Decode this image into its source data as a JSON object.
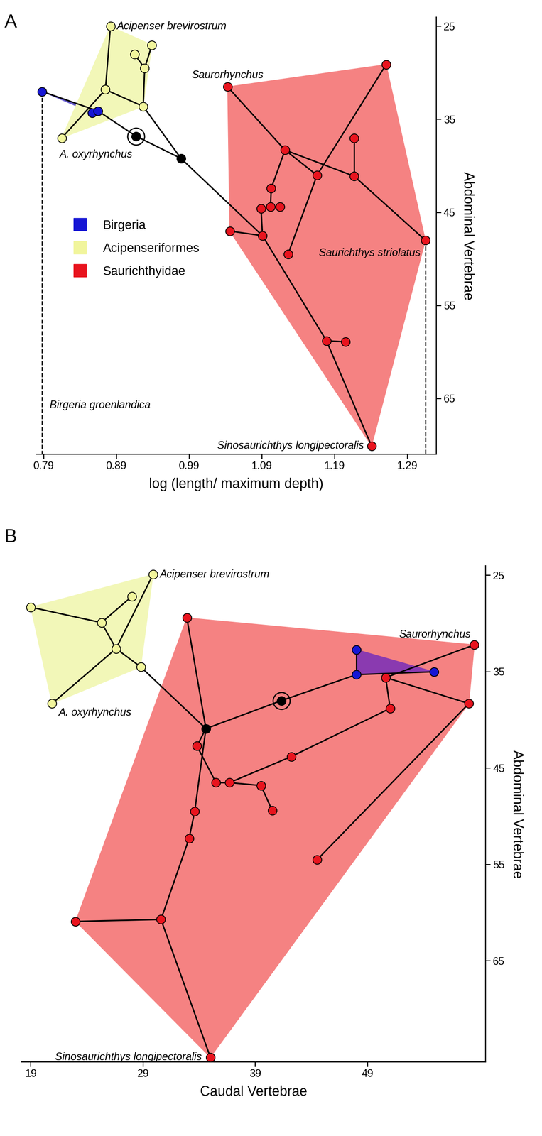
{
  "chart_data": [
    {
      "type": "phylomorphospace",
      "panel": "A",
      "x_label": "log (length/ maximum depth)",
      "y_label": "Abdominal Vertebrae",
      "xlim": [
        0.78,
        1.33
      ],
      "ylim": [
        71,
        24
      ],
      "xticks": [
        0.79,
        0.89,
        0.99,
        1.09,
        1.19,
        1.29
      ],
      "yticks": [
        25,
        35,
        45,
        55,
        65
      ],
      "legend": "center left",
      "marker": "circle",
      "node_color": "#000000",
      "groups": [
        {
          "name": "Birgeria",
          "color": "#1616d4",
          "hull_color": "#6a5fd0"
        },
        {
          "name": "Acipenseriformes",
          "color": "#f1f59c",
          "hull_color": "#f2f7b8"
        },
        {
          "name": "Saurichthyidae",
          "color": "#e8141e",
          "hull_color": "#f58282"
        }
      ],
      "nodes": [
        {
          "x": 0.882,
          "y": 25.0,
          "group": "Acipenseriformes"
        },
        {
          "x": 0.939,
          "y": 27.0,
          "group": "Acipenseriformes"
        },
        {
          "x": 0.915,
          "y": 28.0,
          "group": "Acipenseriformes"
        },
        {
          "x": 0.929,
          "y": 29.5,
          "group": "Acipenseriformes"
        },
        {
          "x": 0.875,
          "y": 31.8,
          "group": "Acipenseriformes"
        },
        {
          "x": 0.927,
          "y": 33.6,
          "group": "Acipenseriformes"
        },
        {
          "x": 0.815,
          "y": 37.0,
          "group": "Acipenseriformes"
        },
        {
          "x": 0.788,
          "y": 32.0,
          "group": "Birgeria"
        },
        {
          "x": 0.857,
          "y": 34.3,
          "group": "Birgeria"
        },
        {
          "x": 0.865,
          "y": 34.1,
          "group": "Birgeria"
        },
        {
          "x": 0.917,
          "y": 36.8,
          "group": null
        },
        {
          "x": 0.979,
          "y": 39.2,
          "group": null
        },
        {
          "x": 1.043,
          "y": 31.5,
          "group": "Saurichthyidae"
        },
        {
          "x": 1.261,
          "y": 29.1,
          "group": "Saurichthyidae"
        },
        {
          "x": 1.122,
          "y": 38.3,
          "group": "Saurichthyidae"
        },
        {
          "x": 1.217,
          "y": 37.0,
          "group": "Saurichthyidae"
        },
        {
          "x": 1.166,
          "y": 41.0,
          "group": "Saurichthyidae"
        },
        {
          "x": 1.217,
          "y": 41.1,
          "group": "Saurichthyidae"
        },
        {
          "x": 1.103,
          "y": 42.4,
          "group": "Saurichthyidae"
        },
        {
          "x": 1.089,
          "y": 44.6,
          "group": "Saurichthyidae"
        },
        {
          "x": 1.102,
          "y": 44.4,
          "group": "Saurichthyidae"
        },
        {
          "x": 1.115,
          "y": 44.4,
          "group": "Saurichthyidae"
        },
        {
          "x": 1.046,
          "y": 47.0,
          "group": "Saurichthyidae"
        },
        {
          "x": 1.091,
          "y": 47.5,
          "group": "Saurichthyidae"
        },
        {
          "x": 1.315,
          "y": 48.0,
          "group": "Saurichthyidae"
        },
        {
          "x": 1.126,
          "y": 49.5,
          "group": "Saurichthyidae"
        },
        {
          "x": 1.179,
          "y": 58.8,
          "group": "Saurichthyidae"
        },
        {
          "x": 1.205,
          "y": 58.9,
          "group": "Saurichthyidae"
        },
        {
          "x": 1.241,
          "y": 70.1,
          "group": "Saurichthyidae"
        }
      ],
      "edges": [
        [
          0,
          4
        ],
        [
          4,
          6
        ],
        [
          4,
          5
        ],
        [
          5,
          3
        ],
        [
          3,
          2
        ],
        [
          3,
          1
        ],
        [
          5,
          11
        ],
        [
          7,
          9
        ],
        [
          9,
          8
        ],
        [
          9,
          10
        ],
        [
          10,
          11
        ],
        [
          11,
          23
        ],
        [
          23,
          22
        ],
        [
          23,
          19
        ],
        [
          23,
          26
        ],
        [
          26,
          28
        ],
        [
          26,
          27
        ],
        [
          19,
          20
        ],
        [
          20,
          18
        ],
        [
          20,
          21
        ],
        [
          18,
          14
        ],
        [
          14,
          12
        ],
        [
          14,
          17
        ],
        [
          17,
          15
        ],
        [
          17,
          24
        ],
        [
          14,
          16
        ],
        [
          16,
          13
        ],
        [
          16,
          25
        ]
      ],
      "root": 10,
      "drop_lines": [
        7,
        24
      ],
      "labels": [
        {
          "node": 0,
          "text": "Acipenser brevirostrum"
        },
        {
          "node": 6,
          "text": "A. oxyrhynchus"
        },
        {
          "node": 12,
          "text": "Saurorhynchus"
        },
        {
          "node": 24,
          "text": "Saurichthys striolatus"
        },
        {
          "node": 7,
          "text": "Birgeria groenlandica"
        },
        {
          "node": 28,
          "text": "Sinosaurichthys longipectoralis"
        }
      ]
    },
    {
      "type": "phylomorphospace",
      "panel": "B",
      "x_label": "Caudal Vertebrae",
      "y_label": "Abdominal Vertebrae",
      "xlim": [
        18.2,
        59.5
      ],
      "ylim": [
        75.5,
        24
      ],
      "xticks": [
        19,
        29,
        39,
        49
      ],
      "yticks": [
        25,
        35,
        45,
        55,
        65
      ],
      "marker": "circle",
      "node_color": "#000000",
      "groups": [
        {
          "name": "Acipenseriformes",
          "color": "#f1f59c",
          "hull_color": "#f2f7b8"
        },
        {
          "name": "Saurichthyidae",
          "color": "#e8141e",
          "hull_color": "#f58282"
        },
        {
          "name": "Birgeria",
          "color": "#1616d4",
          "hull_color": "#8a3ab0"
        }
      ],
      "nodes": [
        {
          "x": 29.9,
          "y": 24.9,
          "group": "Acipenseriformes"
        },
        {
          "x": 28.0,
          "y": 27.2,
          "group": "Acipenseriformes"
        },
        {
          "x": 19.0,
          "y": 28.3,
          "group": "Acipenseriformes"
        },
        {
          "x": 25.3,
          "y": 29.9,
          "group": "Acipenseriformes"
        },
        {
          "x": 26.6,
          "y": 32.6,
          "group": "Acipenseriformes"
        },
        {
          "x": 28.8,
          "y": 34.5,
          "group": "Acipenseriformes"
        },
        {
          "x": 20.9,
          "y": 38.3,
          "group": "Acipenseriformes"
        },
        {
          "x": 34.6,
          "y": 40.9,
          "group": null
        },
        {
          "x": 41.3,
          "y": 38.0,
          "group": null
        },
        {
          "x": 48.0,
          "y": 32.7,
          "group": "Birgeria"
        },
        {
          "x": 48.0,
          "y": 35.3,
          "group": "Birgeria"
        },
        {
          "x": 54.9,
          "y": 35.0,
          "group": "Birgeria"
        },
        {
          "x": 58.5,
          "y": 32.2,
          "group": "Saurichthyidae"
        },
        {
          "x": 32.9,
          "y": 29.4,
          "group": "Saurichthyidae"
        },
        {
          "x": 58.0,
          "y": 38.3,
          "group": "Saurichthyidae"
        },
        {
          "x": 50.6,
          "y": 35.6,
          "group": "Saurichthyidae"
        },
        {
          "x": 51.0,
          "y": 38.8,
          "group": "Saurichthyidae"
        },
        {
          "x": 33.8,
          "y": 42.7,
          "group": "Saurichthyidae"
        },
        {
          "x": 42.2,
          "y": 43.8,
          "group": "Saurichthyidae"
        },
        {
          "x": 35.5,
          "y": 46.5,
          "group": "Saurichthyidae"
        },
        {
          "x": 36.7,
          "y": 46.5,
          "group": "Saurichthyidae"
        },
        {
          "x": 39.5,
          "y": 46.8,
          "group": "Saurichthyidae"
        },
        {
          "x": 40.5,
          "y": 49.4,
          "group": "Saurichthyidae"
        },
        {
          "x": 33.6,
          "y": 49.5,
          "group": "Saurichthyidae"
        },
        {
          "x": 33.1,
          "y": 52.3,
          "group": "Saurichthyidae"
        },
        {
          "x": 44.5,
          "y": 54.5,
          "group": "Saurichthyidae"
        },
        {
          "x": 23.0,
          "y": 60.9,
          "group": "Saurichthyidae"
        },
        {
          "x": 30.6,
          "y": 60.7,
          "group": "Saurichthyidae"
        },
        {
          "x": 35.0,
          "y": 75.0,
          "group": "Saurichthyidae"
        }
      ],
      "edges": [
        [
          0,
          4
        ],
        [
          2,
          3
        ],
        [
          3,
          1
        ],
        [
          3,
          4
        ],
        [
          4,
          6
        ],
        [
          4,
          5
        ],
        [
          5,
          7
        ],
        [
          7,
          13
        ],
        [
          7,
          8
        ],
        [
          8,
          10
        ],
        [
          10,
          9
        ],
        [
          10,
          11
        ],
        [
          7,
          17
        ],
        [
          17,
          19
        ],
        [
          19,
          20
        ],
        [
          20,
          18
        ],
        [
          20,
          21
        ],
        [
          21,
          22
        ],
        [
          7,
          23
        ],
        [
          23,
          24
        ],
        [
          24,
          27
        ],
        [
          27,
          26
        ],
        [
          27,
          28
        ],
        [
          18,
          16
        ],
        [
          16,
          15
        ],
        [
          15,
          12
        ],
        [
          15,
          14
        ],
        [
          14,
          25
        ]
      ],
      "root": 8,
      "labels": [
        {
          "node": 0,
          "text": "Acipenser brevirostrum"
        },
        {
          "node": 6,
          "text": "A. oxyrhynchus"
        },
        {
          "node": 12,
          "text": "Saurorhynchus"
        },
        {
          "node": 28,
          "text": "Sinosaurichthys longipectoralis"
        }
      ]
    }
  ]
}
